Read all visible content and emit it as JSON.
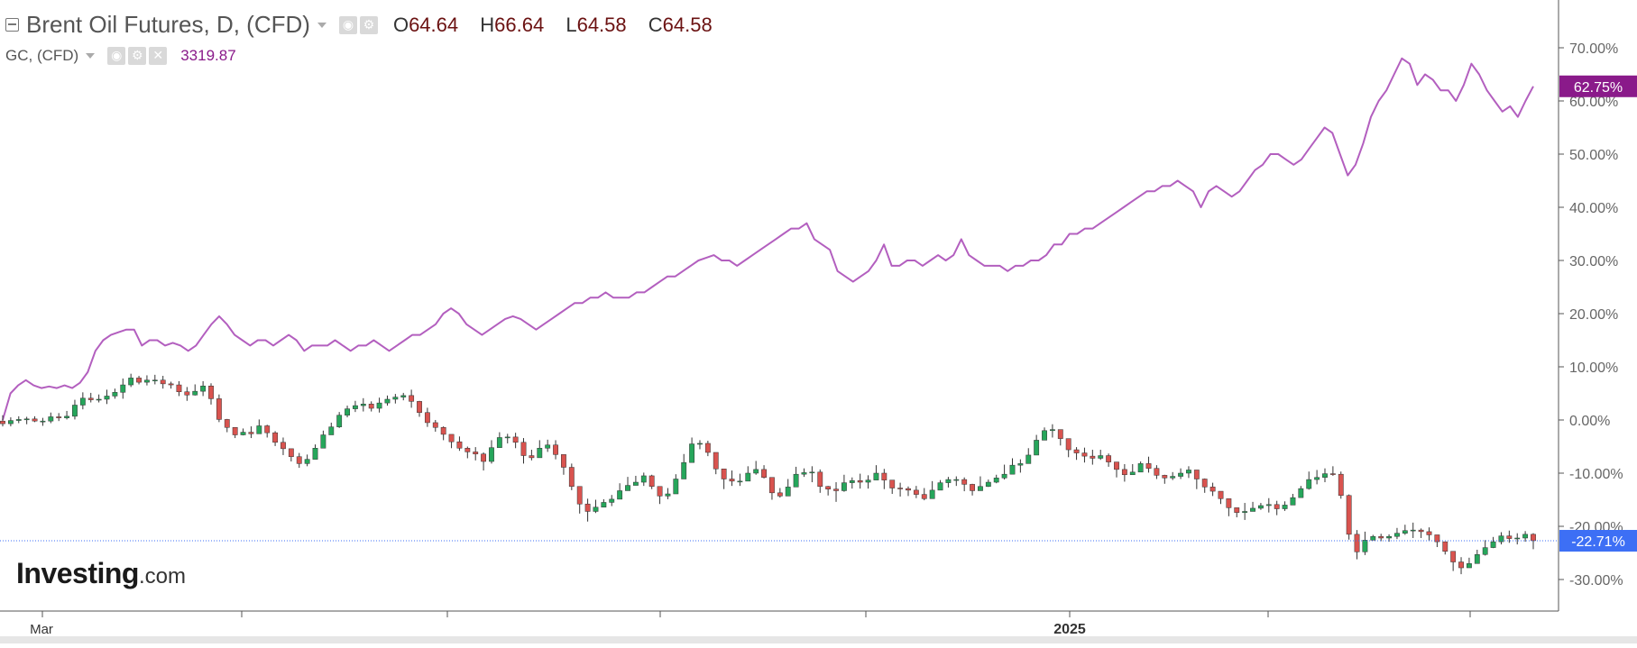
{
  "legend": {
    "main_title": "Brent Oil Futures, D, (CFD)",
    "ohlc": {
      "o_label": "O",
      "o": "64.64",
      "h_label": "H",
      "h": "66.64",
      "l_label": "L",
      "l": "64.58",
      "c_label": "C",
      "c": "64.58"
    },
    "secondary_title": "GC, (CFD)",
    "secondary_value": "3319.87"
  },
  "logo": {
    "name": "Investing",
    "suffix": ".com"
  },
  "colors": {
    "up": "#26a65b",
    "down": "#d9534f",
    "gold_line": "#b35fbf",
    "gold_tag": "#8a1a8a",
    "brent_tag": "#3d6ff5",
    "axis": "#666666"
  },
  "chart_data": {
    "type": "line",
    "xlabel": "",
    "ylabel": "",
    "x_ticks": [
      "Mar",
      "2025"
    ],
    "y_ticks": [
      "70.00%",
      "60.00%",
      "50.00%",
      "40.00%",
      "30.00%",
      "20.00%",
      "10.00%",
      "0.00%",
      "-10.00%",
      "-20.00%",
      "-30.00%"
    ],
    "ylim": [
      -35,
      80
    ],
    "last_values": {
      "gold": "62.75%",
      "brent": "-22.71%"
    },
    "gold_series": {
      "name": "GC, (CFD)",
      "values": [
        0,
        5,
        6.5,
        7.5,
        6.5,
        6,
        6.3,
        6,
        6.5,
        6,
        7,
        9,
        13,
        15,
        16,
        16.5,
        17,
        17,
        14,
        15,
        15,
        14,
        14.5,
        14,
        13,
        14,
        16,
        18,
        19.5,
        18,
        16,
        15,
        14,
        15,
        15,
        14,
        15,
        16,
        15,
        13,
        14,
        14,
        14,
        15,
        14,
        13,
        14,
        14,
        15,
        14,
        13,
        14,
        15,
        16,
        16,
        17,
        18,
        20,
        21,
        20,
        18,
        17,
        16,
        17,
        18,
        19,
        19.5,
        19,
        18,
        17,
        18,
        19,
        20,
        21,
        22,
        22,
        23,
        23,
        24,
        23,
        23,
        23,
        24,
        24,
        25,
        26,
        27,
        27,
        28,
        29,
        30,
        30.5,
        31,
        30,
        30,
        29,
        30,
        31,
        32,
        33,
        34,
        35,
        36,
        36,
        37,
        34,
        33,
        32,
        28,
        27,
        26,
        27,
        28,
        30,
        33,
        29,
        29,
        30,
        30,
        29,
        30,
        31,
        30,
        31,
        34,
        31,
        30,
        29,
        29,
        29,
        28,
        29,
        29,
        30,
        30,
        31,
        33,
        33,
        35,
        35,
        36,
        36,
        37,
        38,
        39,
        40,
        41,
        42,
        43,
        43,
        44,
        44,
        45,
        44,
        43,
        40,
        43,
        44,
        43,
        42,
        43,
        45,
        47,
        48,
        50,
        50,
        49,
        48,
        49,
        51,
        53,
        55,
        54,
        50,
        46,
        48,
        52,
        57,
        60,
        62,
        65,
        68,
        67,
        63,
        65,
        64,
        62,
        62,
        60,
        63,
        67,
        65,
        62,
        60,
        58,
        59,
        57,
        60,
        62.75
      ]
    },
    "brent_series": {
      "name": "Brent Oil Futures, D, (CFD)",
      "ohlc": [
        [
          -0.2,
          -0.7,
          0.9,
          -1.2
        ],
        [
          -0.7,
          -0.1,
          0.5,
          -1.2
        ],
        [
          -0.1,
          0.1,
          0.7,
          -0.6
        ],
        [
          0.1,
          0.2,
          0.6,
          -0.8
        ],
        [
          0.2,
          -0.2,
          0.7,
          -0.4
        ],
        [
          -0.2,
          -0.2,
          0.4,
          -1.1
        ],
        [
          -0.2,
          0.6,
          1.4,
          -0.6
        ],
        [
          0.6,
          0.4,
          1.3,
          -0.2
        ],
        [
          0.4,
          0.7,
          1.7,
          0.1
        ],
        [
          0.7,
          2.8,
          3.8,
          0.1
        ],
        [
          2.8,
          4.1,
          5.2,
          2
        ],
        [
          4.1,
          3.8,
          5.1,
          3.3
        ],
        [
          3.8,
          3.9,
          4.8,
          3.3
        ],
        [
          3.9,
          4.5,
          5.7,
          3
        ],
        [
          4.5,
          5.2,
          5.9,
          4
        ],
        [
          5.2,
          6.6,
          7.8,
          4
        ],
        [
          6.6,
          7.9,
          8.7,
          6.2
        ],
        [
          7.9,
          7.1,
          8.3,
          6.7
        ],
        [
          7.1,
          7.5,
          8.4,
          6.5
        ],
        [
          7.5,
          7.5,
          8.5,
          6.7
        ],
        [
          7.5,
          6.8,
          8.3,
          5.9
        ],
        [
          6.8,
          6.6,
          7.2,
          5.9
        ],
        [
          6.6,
          5.3,
          7.3,
          4.5
        ],
        [
          5.3,
          4.7,
          6.2,
          3.6
        ],
        [
          4.7,
          5.4,
          6.7,
          4.6
        ],
        [
          5.4,
          6.4,
          7.3,
          4.5
        ],
        [
          6.4,
          4,
          6.9,
          2.9
        ],
        [
          4,
          0.1,
          4.8,
          -0.4
        ],
        [
          0.1,
          -1.4,
          0.2,
          -2.3
        ],
        [
          -1.4,
          -2.8,
          -1.5,
          -3.4
        ],
        [
          -2.8,
          -2.3,
          -1.6,
          -2.9
        ],
        [
          -2.3,
          -2.6,
          -1.2,
          -3.4
        ],
        [
          -2.6,
          -1.1,
          0.1,
          -2.3
        ],
        [
          -1.1,
          -2.4,
          -0.9,
          -3.3
        ],
        [
          -2.4,
          -4.2,
          -2.1,
          -4.9
        ],
        [
          -4.2,
          -5.4,
          -3.3,
          -6.6
        ],
        [
          -5.4,
          -6.9,
          -5.8,
          -7.8
        ],
        [
          -6.9,
          -8.2,
          -6.2,
          -9
        ],
        [
          -8.2,
          -7.4,
          -6.5,
          -8.7
        ],
        [
          -7.4,
          -5.3,
          -4.6,
          -6.3
        ],
        [
          -5.3,
          -2.8,
          -2,
          -3.2
        ],
        [
          -2.8,
          -1.3,
          -0.5,
          -2
        ],
        [
          -1.3,
          0.9,
          1.5,
          -1.5
        ],
        [
          0.9,
          2.1,
          2.7,
          0.5
        ],
        [
          2.1,
          2.7,
          3.6,
          1.5
        ],
        [
          2.7,
          3,
          4.1,
          1.6
        ],
        [
          3,
          2.2,
          3.5,
          1.6
        ],
        [
          2.2,
          3.2,
          4.2,
          1.4
        ],
        [
          3.2,
          3.9,
          4.6,
          2.7
        ],
        [
          3.9,
          4.3,
          4.9,
          3.1
        ],
        [
          4.3,
          4.6,
          5.1,
          3.7
        ],
        [
          4.6,
          3.5,
          5.7,
          2.3
        ],
        [
          3.5,
          1.4,
          3.6,
          0.6
        ],
        [
          1.4,
          -0.5,
          2.3,
          -1.3
        ],
        [
          -0.5,
          -1.4,
          0,
          -2.2
        ],
        [
          -1.4,
          -2.7,
          -1.2,
          -3.8
        ],
        [
          -2.7,
          -4.1,
          -3.5,
          -5.3
        ],
        [
          -4.1,
          -5.3,
          -3.1,
          -5.8
        ],
        [
          -5.3,
          -6,
          -5,
          -7.2
        ],
        [
          -6,
          -6.4,
          -5.1,
          -7.6
        ],
        [
          -6.4,
          -7.8,
          -6.1,
          -9.5
        ],
        [
          -7.8,
          -5.2,
          -3.8,
          -8.2
        ],
        [
          -5.2,
          -3.3,
          -2.3,
          -4.4
        ],
        [
          -3.3,
          -3.2,
          -2.6,
          -4.4
        ],
        [
          -3.2,
          -4.2,
          -2.4,
          -5.3
        ],
        [
          -4.2,
          -6.7,
          -3.4,
          -8.2
        ],
        [
          -6.7,
          -7.1,
          -5.6,
          -7.6
        ],
        [
          -7.1,
          -5.3,
          -3.8,
          -5.7
        ],
        [
          -5.3,
          -4.7,
          -3.7,
          -6
        ],
        [
          -4.7,
          -6.5,
          -3.8,
          -7.4
        ],
        [
          -6.5,
          -8.9,
          -7.6,
          -10.3
        ],
        [
          -8.9,
          -12.5,
          -8.2,
          -13.2
        ],
        [
          -12.5,
          -15.8,
          -13.9,
          -17.6
        ],
        [
          -15.8,
          -17.2,
          -14.8,
          -19.1
        ],
        [
          -17.2,
          -16.4,
          -15,
          -17.5
        ],
        [
          -16.4,
          -15.5,
          -14.9,
          -16.4
        ],
        [
          -15.5,
          -14.9,
          -14.1,
          -16.2
        ],
        [
          -14.9,
          -13.3,
          -11.9,
          -13.8
        ],
        [
          -13.3,
          -12.3,
          -10.7,
          -12.9
        ],
        [
          -12.3,
          -11.7,
          -10.5,
          -12.1
        ],
        [
          -11.7,
          -10.5,
          -9.9,
          -12.4
        ],
        [
          -10.5,
          -12.5,
          -10.3,
          -13
        ],
        [
          -12.5,
          -14.3,
          -12.7,
          -15.8
        ],
        [
          -14.3,
          -13.9,
          -12.8,
          -14.9
        ],
        [
          -13.9,
          -11.1,
          -10.2,
          -11.9
        ],
        [
          -11.1,
          -8,
          -6.4,
          -9.7
        ],
        [
          -8,
          -4.5,
          -3.3,
          -5.3
        ],
        [
          -4.5,
          -4.4,
          -3.8,
          -5.5
        ],
        [
          -4.4,
          -6.1,
          -3.9,
          -6.8
        ],
        [
          -6.1,
          -9.2,
          -7.4,
          -10.2
        ],
        [
          -9.2,
          -11.1,
          -10.7,
          -13
        ],
        [
          -11.1,
          -11.5,
          -9.5,
          -12.4
        ],
        [
          -11.5,
          -11.5,
          -10.1,
          -12.4
        ],
        [
          -11.5,
          -10,
          -8.7,
          -10.3
        ],
        [
          -10,
          -9.3,
          -7.7,
          -10.3
        ],
        [
          -9.3,
          -10.8,
          -8.5,
          -11
        ],
        [
          -10.8,
          -13.7,
          -12,
          -15
        ],
        [
          -13.7,
          -14.3,
          -12.8,
          -14.6
        ],
        [
          -14.3,
          -12.6,
          -11.1,
          -13.5
        ],
        [
          -12.6,
          -10.2,
          -8.8,
          -10.4
        ],
        [
          -10.2,
          -9.9,
          -9.1,
          -10.7
        ],
        [
          -9.9,
          -9.8,
          -8.7,
          -11.7
        ],
        [
          -9.8,
          -12.5,
          -9.3,
          -13.7
        ],
        [
          -12.5,
          -13,
          -12.4,
          -14.2
        ],
        [
          -13,
          -13.3,
          -11.7,
          -15.4
        ],
        [
          -13.3,
          -11.8,
          -10.3,
          -13.5
        ],
        [
          -11.8,
          -11.4,
          -10.8,
          -12.9
        ],
        [
          -11.4,
          -11.7,
          -10.1,
          -12.9
        ],
        [
          -11.7,
          -11.3,
          -10.4,
          -12.9
        ],
        [
          -11.3,
          -10,
          -8.5,
          -11.3
        ],
        [
          -10,
          -11.3,
          -9.2,
          -13
        ],
        [
          -11.3,
          -12.8,
          -11.4,
          -13.9
        ],
        [
          -12.8,
          -12.9,
          -11.8,
          -14.4
        ],
        [
          -12.9,
          -13.2,
          -12.5,
          -14.3
        ],
        [
          -13.2,
          -14,
          -12.4,
          -14.7
        ],
        [
          -14,
          -14.8,
          -12.8,
          -15.1
        ],
        [
          -14.8,
          -13.2,
          -11.5,
          -14.2
        ],
        [
          -13.2,
          -11.8,
          -11.3,
          -12.8
        ],
        [
          -11.8,
          -11.2,
          -10.7,
          -12.7
        ],
        [
          -11.2,
          -11.2,
          -10.6,
          -12.4
        ],
        [
          -11.2,
          -12.1,
          -10.8,
          -13.4
        ],
        [
          -12.1,
          -13.3,
          -12,
          -14.2
        ],
        [
          -13.3,
          -12.5,
          -10.6,
          -13.3
        ],
        [
          -12.5,
          -11.7,
          -11.2,
          -12.6
        ],
        [
          -11.7,
          -10.9,
          -10.3,
          -11.9
        ],
        [
          -10.9,
          -10.2,
          -8.4,
          -11.2
        ],
        [
          -10.2,
          -8.5,
          -7.2,
          -8.7
        ],
        [
          -8.5,
          -8.2,
          -7.4,
          -9.9
        ],
        [
          -8.2,
          -6.6,
          -5.3,
          -7.4
        ],
        [
          -6.6,
          -3.8,
          -2.8,
          -5.1
        ],
        [
          -3.8,
          -2,
          -1.4,
          -3.1
        ],
        [
          -2,
          -1.8,
          -0.8,
          -3.3
        ],
        [
          -1.8,
          -3.5,
          -2.5,
          -4.8
        ],
        [
          -3.5,
          -5.6,
          -4.2,
          -7
        ],
        [
          -5.6,
          -6.2,
          -5.1,
          -7.5
        ],
        [
          -6.2,
          -6.8,
          -5.2,
          -8
        ],
        [
          -6.8,
          -7.2,
          -5.6,
          -8.4
        ],
        [
          -7.2,
          -6.7,
          -5.6,
          -7.5
        ],
        [
          -6.7,
          -7.9,
          -6.3,
          -8.8
        ],
        [
          -7.9,
          -9.3,
          -8.5,
          -10.8
        ],
        [
          -9.3,
          -10.3,
          -8.3,
          -11.6
        ],
        [
          -10.3,
          -9.8,
          -8.3,
          -10.1
        ],
        [
          -9.8,
          -8.2,
          -7.8,
          -9.6
        ],
        [
          -8.2,
          -9.1,
          -6.9,
          -9.9
        ],
        [
          -9.1,
          -10.4,
          -8.5,
          -11.1
        ],
        [
          -10.4,
          -10.9,
          -10.3,
          -12
        ],
        [
          -10.9,
          -10.6,
          -9.8,
          -11.3
        ],
        [
          -10.6,
          -10,
          -9.1,
          -11.1
        ],
        [
          -10,
          -9.4,
          -8.7,
          -10.9
        ],
        [
          -9.4,
          -11.1,
          -9.4,
          -13
        ],
        [
          -11.1,
          -12.6,
          -11,
          -13.7
        ],
        [
          -12.6,
          -13.4,
          -11.8,
          -14.3
        ],
        [
          -13.4,
          -14.8,
          -13.5,
          -15.8
        ],
        [
          -14.8,
          -16.5,
          -14.8,
          -18.1
        ],
        [
          -16.5,
          -17.4,
          -16.6,
          -18.3
        ],
        [
          -17.4,
          -17.2,
          -15.6,
          -18.8
        ],
        [
          -17.2,
          -16.6,
          -15.4,
          -17.1
        ],
        [
          -16.6,
          -16.1,
          -15.6,
          -16.9
        ],
        [
          -16.1,
          -15.9,
          -14.7,
          -17.4
        ],
        [
          -15.9,
          -16.7,
          -15.2,
          -17.9
        ],
        [
          -16.7,
          -16,
          -15.3,
          -17.1
        ],
        [
          -16,
          -14.6,
          -13.9,
          -15.6
        ],
        [
          -14.6,
          -12.9,
          -12.4,
          -13.2
        ],
        [
          -12.9,
          -11.2,
          -9.7,
          -13.1
        ],
        [
          -11.2,
          -10.8,
          -9.4,
          -12.1
        ],
        [
          -10.8,
          -10.1,
          -9.1,
          -11.7
        ],
        [
          -10.1,
          -10.2,
          -8.7,
          -10.5
        ],
        [
          -10.2,
          -14.2,
          -9.7,
          -14.8
        ],
        [
          -14.2,
          -21.5,
          -14,
          -22.5
        ],
        [
          -21.5,
          -24.8,
          -20.7,
          -26.2
        ],
        [
          -24.8,
          -22.6,
          -21,
          -25.4
        ],
        [
          -22.6,
          -21.9,
          -21.6,
          -22.6
        ],
        [
          -21.9,
          -22.2,
          -21.4,
          -22.8
        ],
        [
          -22.2,
          -21.9,
          -21.5,
          -22.9
        ],
        [
          -21.9,
          -21.3,
          -20.3,
          -22.4
        ],
        [
          -21.3,
          -20.8,
          -19.7,
          -21.6
        ],
        [
          -20.8,
          -20.7,
          -19.3,
          -22.2
        ],
        [
          -20.7,
          -21,
          -20.4,
          -22.2
        ],
        [
          -21,
          -21.6,
          -20.2,
          -22.8
        ],
        [
          -21.6,
          -22.9,
          -22.2,
          -23.9
        ],
        [
          -22.9,
          -24.7,
          -23.2,
          -25.3
        ],
        [
          -24.7,
          -26.7,
          -25.7,
          -28.4
        ],
        [
          -26.7,
          -27.8,
          -25.8,
          -29
        ],
        [
          -27.8,
          -27,
          -25.9,
          -27.4
        ],
        [
          -27,
          -25.3,
          -24.4,
          -25.8
        ],
        [
          -25.3,
          -24,
          -22.6,
          -25.5
        ],
        [
          -24,
          -22.9,
          -22,
          -24.1
        ],
        [
          -22.9,
          -21.8,
          -21.1,
          -23.4
        ],
        [
          -21.8,
          -22.3,
          -20.8,
          -23.1
        ],
        [
          -22.3,
          -22.2,
          -21.3,
          -23.4
        ],
        [
          -22.2,
          -21.5,
          -20.9,
          -22.9
        ],
        [
          -21.5,
          -22.7,
          -21.3,
          -24.3
        ]
      ]
    }
  }
}
